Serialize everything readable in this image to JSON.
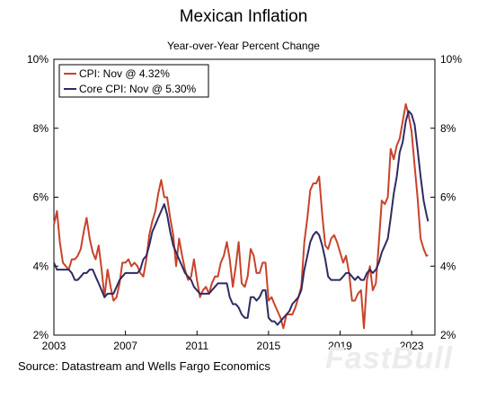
{
  "chart_data": {
    "type": "line",
    "title": "Mexican Inflation",
    "subtitle": "Year-over-Year Percent Change",
    "xlabel": "",
    "ylabel": "",
    "xlim": [
      2003,
      2024.3
    ],
    "ylim": [
      2,
      10
    ],
    "x_ticks": [
      2003,
      2007,
      2011,
      2015,
      2019,
      2023
    ],
    "x_tick_labels": [
      "2003",
      "2007",
      "2011",
      "2015",
      "2019",
      "2023"
    ],
    "y_ticks": [
      2,
      4,
      6,
      8,
      10
    ],
    "y_tick_labels": [
      "2%",
      "4%",
      "6%",
      "8%",
      "10%"
    ],
    "grid": false,
    "legend_position": "top-left",
    "series": [
      {
        "name": "CPI: Nov @ 4.32%",
        "color": "#c8432b",
        "points": [
          [
            2003.0,
            5.2
          ],
          [
            2003.17,
            5.6
          ],
          [
            2003.33,
            4.7
          ],
          [
            2003.5,
            4.1
          ],
          [
            2003.67,
            4.0
          ],
          [
            2003.83,
            3.9
          ],
          [
            2004.0,
            4.2
          ],
          [
            2004.17,
            4.2
          ],
          [
            2004.33,
            4.3
          ],
          [
            2004.5,
            4.5
          ],
          [
            2004.67,
            5.0
          ],
          [
            2004.83,
            5.4
          ],
          [
            2005.0,
            4.8
          ],
          [
            2005.17,
            4.4
          ],
          [
            2005.33,
            4.2
          ],
          [
            2005.5,
            4.6
          ],
          [
            2005.67,
            3.9
          ],
          [
            2005.83,
            3.1
          ],
          [
            2006.0,
            3.9
          ],
          [
            2006.17,
            3.4
          ],
          [
            2006.33,
            3.0
          ],
          [
            2006.5,
            3.1
          ],
          [
            2006.67,
            3.5
          ],
          [
            2006.83,
            4.1
          ],
          [
            2007.0,
            4.1
          ],
          [
            2007.17,
            4.2
          ],
          [
            2007.33,
            4.0
          ],
          [
            2007.5,
            4.1
          ],
          [
            2007.67,
            4.0
          ],
          [
            2007.83,
            3.8
          ],
          [
            2008.0,
            3.7
          ],
          [
            2008.17,
            4.2
          ],
          [
            2008.33,
            4.9
          ],
          [
            2008.5,
            5.3
          ],
          [
            2008.67,
            5.6
          ],
          [
            2008.83,
            6.1
          ],
          [
            2009.0,
            6.5
          ],
          [
            2009.17,
            6.0
          ],
          [
            2009.33,
            6.0
          ],
          [
            2009.5,
            5.4
          ],
          [
            2009.67,
            4.9
          ],
          [
            2009.83,
            4.0
          ],
          [
            2010.0,
            4.8
          ],
          [
            2010.17,
            4.3
          ],
          [
            2010.33,
            3.9
          ],
          [
            2010.5,
            3.6
          ],
          [
            2010.67,
            3.7
          ],
          [
            2010.83,
            4.2
          ],
          [
            2011.0,
            3.6
          ],
          [
            2011.17,
            3.1
          ],
          [
            2011.33,
            3.3
          ],
          [
            2011.5,
            3.4
          ],
          [
            2011.67,
            3.2
          ],
          [
            2011.83,
            3.5
          ],
          [
            2012.0,
            3.7
          ],
          [
            2012.17,
            3.7
          ],
          [
            2012.33,
            4.1
          ],
          [
            2012.5,
            4.3
          ],
          [
            2012.67,
            4.7
          ],
          [
            2012.83,
            4.2
          ],
          [
            2013.0,
            3.4
          ],
          [
            2013.17,
            4.0
          ],
          [
            2013.33,
            4.7
          ],
          [
            2013.5,
            3.5
          ],
          [
            2013.67,
            3.4
          ],
          [
            2013.83,
            3.7
          ],
          [
            2014.0,
            4.5
          ],
          [
            2014.17,
            4.3
          ],
          [
            2014.33,
            3.8
          ],
          [
            2014.5,
            3.8
          ],
          [
            2014.67,
            4.1
          ],
          [
            2014.83,
            4.1
          ],
          [
            2015.0,
            3.0
          ],
          [
            2015.17,
            3.1
          ],
          [
            2015.33,
            2.9
          ],
          [
            2015.5,
            2.7
          ],
          [
            2015.67,
            2.5
          ],
          [
            2015.83,
            2.2
          ],
          [
            2016.0,
            2.6
          ],
          [
            2016.17,
            2.6
          ],
          [
            2016.33,
            2.6
          ],
          [
            2016.5,
            2.8
          ],
          [
            2016.67,
            3.1
          ],
          [
            2016.83,
            3.4
          ],
          [
            2017.0,
            4.7
          ],
          [
            2017.17,
            5.4
          ],
          [
            2017.33,
            6.2
          ],
          [
            2017.5,
            6.4
          ],
          [
            2017.67,
            6.4
          ],
          [
            2017.83,
            6.6
          ],
          [
            2018.0,
            5.5
          ],
          [
            2018.17,
            4.6
          ],
          [
            2018.33,
            4.5
          ],
          [
            2018.5,
            4.8
          ],
          [
            2018.67,
            4.9
          ],
          [
            2018.83,
            4.7
          ],
          [
            2019.0,
            4.4
          ],
          [
            2019.17,
            4.1
          ],
          [
            2019.33,
            4.3
          ],
          [
            2019.5,
            3.8
          ],
          [
            2019.67,
            3.0
          ],
          [
            2019.83,
            3.0
          ],
          [
            2020.0,
            3.2
          ],
          [
            2020.17,
            3.3
          ],
          [
            2020.33,
            2.2
          ],
          [
            2020.5,
            3.6
          ],
          [
            2020.67,
            4.0
          ],
          [
            2020.83,
            3.3
          ],
          [
            2021.0,
            3.5
          ],
          [
            2021.17,
            4.7
          ],
          [
            2021.33,
            5.9
          ],
          [
            2021.5,
            5.8
          ],
          [
            2021.67,
            6.0
          ],
          [
            2021.83,
            7.4
          ],
          [
            2022.0,
            7.1
          ],
          [
            2022.17,
            7.5
          ],
          [
            2022.33,
            7.7
          ],
          [
            2022.5,
            8.2
          ],
          [
            2022.67,
            8.7
          ],
          [
            2022.83,
            8.4
          ],
          [
            2023.0,
            7.9
          ],
          [
            2023.17,
            6.9
          ],
          [
            2023.33,
            6.0
          ],
          [
            2023.5,
            4.8
          ],
          [
            2023.67,
            4.5
          ],
          [
            2023.83,
            4.3
          ],
          [
            2023.92,
            4.32
          ]
        ]
      },
      {
        "name": "Core CPI: Nov @ 5.30%",
        "color": "#2d2b63",
        "points": [
          [
            2003.0,
            4.1
          ],
          [
            2003.17,
            3.9
          ],
          [
            2003.33,
            3.9
          ],
          [
            2003.5,
            3.9
          ],
          [
            2003.67,
            3.9
          ],
          [
            2003.83,
            3.9
          ],
          [
            2004.0,
            3.8
          ],
          [
            2004.17,
            3.6
          ],
          [
            2004.33,
            3.6
          ],
          [
            2004.5,
            3.7
          ],
          [
            2004.67,
            3.8
          ],
          [
            2004.83,
            3.8
          ],
          [
            2005.0,
            3.9
          ],
          [
            2005.17,
            3.9
          ],
          [
            2005.33,
            3.7
          ],
          [
            2005.5,
            3.5
          ],
          [
            2005.67,
            3.3
          ],
          [
            2005.83,
            3.1
          ],
          [
            2006.0,
            3.2
          ],
          [
            2006.17,
            3.2
          ],
          [
            2006.33,
            3.2
          ],
          [
            2006.5,
            3.4
          ],
          [
            2006.67,
            3.6
          ],
          [
            2006.83,
            3.7
          ],
          [
            2007.0,
            3.8
          ],
          [
            2007.17,
            3.8
          ],
          [
            2007.33,
            3.8
          ],
          [
            2007.5,
            3.8
          ],
          [
            2007.67,
            3.8
          ],
          [
            2007.83,
            3.9
          ],
          [
            2008.0,
            4.2
          ],
          [
            2008.17,
            4.3
          ],
          [
            2008.33,
            4.6
          ],
          [
            2008.5,
            5.0
          ],
          [
            2008.67,
            5.2
          ],
          [
            2008.83,
            5.4
          ],
          [
            2009.0,
            5.6
          ],
          [
            2009.17,
            5.8
          ],
          [
            2009.33,
            5.5
          ],
          [
            2009.5,
            5.0
          ],
          [
            2009.67,
            4.6
          ],
          [
            2009.83,
            4.4
          ],
          [
            2010.0,
            4.2
          ],
          [
            2010.17,
            4.0
          ],
          [
            2010.33,
            3.8
          ],
          [
            2010.5,
            3.7
          ],
          [
            2010.67,
            3.6
          ],
          [
            2010.83,
            3.4
          ],
          [
            2011.0,
            3.3
          ],
          [
            2011.17,
            3.2
          ],
          [
            2011.33,
            3.2
          ],
          [
            2011.5,
            3.2
          ],
          [
            2011.67,
            3.2
          ],
          [
            2011.83,
            3.3
          ],
          [
            2012.0,
            3.4
          ],
          [
            2012.17,
            3.5
          ],
          [
            2012.33,
            3.5
          ],
          [
            2012.5,
            3.5
          ],
          [
            2012.67,
            3.5
          ],
          [
            2012.83,
            3.1
          ],
          [
            2013.0,
            2.9
          ],
          [
            2013.17,
            2.9
          ],
          [
            2013.33,
            2.8
          ],
          [
            2013.5,
            2.6
          ],
          [
            2013.67,
            2.5
          ],
          [
            2013.83,
            2.5
          ],
          [
            2014.0,
            3.1
          ],
          [
            2014.17,
            3.1
          ],
          [
            2014.33,
            3.0
          ],
          [
            2014.5,
            3.1
          ],
          [
            2014.67,
            3.3
          ],
          [
            2014.83,
            3.3
          ],
          [
            2015.0,
            2.5
          ],
          [
            2015.17,
            2.4
          ],
          [
            2015.33,
            2.4
          ],
          [
            2015.5,
            2.3
          ],
          [
            2015.67,
            2.4
          ],
          [
            2015.83,
            2.5
          ],
          [
            2016.0,
            2.6
          ],
          [
            2016.17,
            2.7
          ],
          [
            2016.33,
            2.9
          ],
          [
            2016.5,
            3.0
          ],
          [
            2016.67,
            3.1
          ],
          [
            2016.83,
            3.3
          ],
          [
            2017.0,
            3.9
          ],
          [
            2017.17,
            4.3
          ],
          [
            2017.33,
            4.7
          ],
          [
            2017.5,
            4.9
          ],
          [
            2017.67,
            5.0
          ],
          [
            2017.83,
            4.9
          ],
          [
            2018.0,
            4.6
          ],
          [
            2018.17,
            4.2
          ],
          [
            2018.33,
            3.7
          ],
          [
            2018.5,
            3.6
          ],
          [
            2018.67,
            3.6
          ],
          [
            2018.83,
            3.6
          ],
          [
            2019.0,
            3.6
          ],
          [
            2019.17,
            3.7
          ],
          [
            2019.33,
            3.8
          ],
          [
            2019.5,
            3.8
          ],
          [
            2019.67,
            3.7
          ],
          [
            2019.83,
            3.6
          ],
          [
            2020.0,
            3.7
          ],
          [
            2020.17,
            3.6
          ],
          [
            2020.33,
            3.6
          ],
          [
            2020.5,
            3.8
          ],
          [
            2020.67,
            3.9
          ],
          [
            2020.83,
            3.8
          ],
          [
            2021.0,
            3.9
          ],
          [
            2021.17,
            4.1
          ],
          [
            2021.33,
            4.4
          ],
          [
            2021.5,
            4.6
          ],
          [
            2021.67,
            4.8
          ],
          [
            2021.83,
            5.4
          ],
          [
            2022.0,
            6.1
          ],
          [
            2022.17,
            6.6
          ],
          [
            2022.33,
            7.3
          ],
          [
            2022.5,
            7.6
          ],
          [
            2022.67,
            8.2
          ],
          [
            2022.83,
            8.5
          ],
          [
            2023.0,
            8.4
          ],
          [
            2023.17,
            8.1
          ],
          [
            2023.33,
            7.4
          ],
          [
            2023.5,
            6.6
          ],
          [
            2023.67,
            5.9
          ],
          [
            2023.83,
            5.5
          ],
          [
            2023.92,
            5.3
          ]
        ]
      }
    ]
  },
  "footer": {
    "source": "Source: Datastream and Wells Fargo Economics",
    "watermark": "FastBull"
  }
}
